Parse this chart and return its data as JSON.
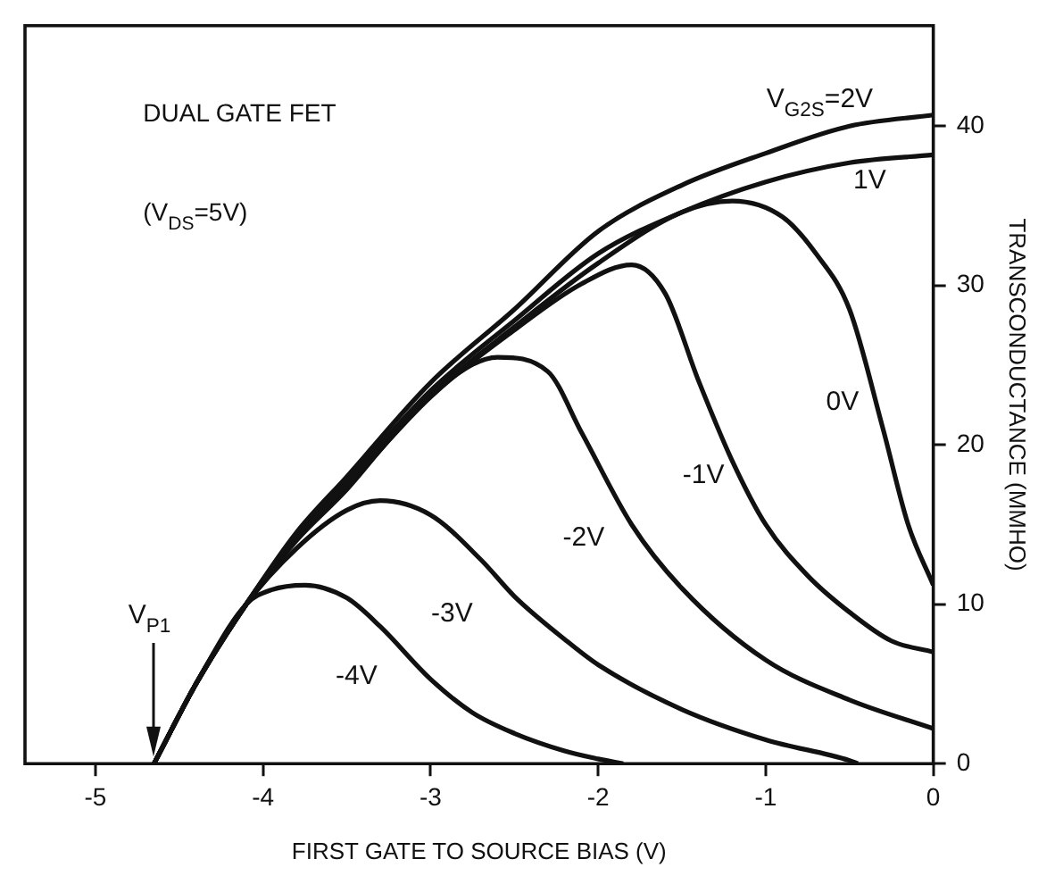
{
  "chart_data": {
    "type": "line",
    "xlabel": "FIRST GATE TO SOURCE BIAS (V)",
    "ylabel": "TRANSCONDUCTANCE (MMHO)",
    "xlim": [
      -5.42,
      0
    ],
    "xticks": [
      -5,
      -4,
      -3,
      -2,
      -1,
      0
    ],
    "ylim": [
      0,
      46.3
    ],
    "yticks": [
      0,
      10,
      20,
      30,
      40
    ],
    "grid": false,
    "legend": false,
    "marker": "none",
    "line_style": "solid",
    "annotations": [
      "DUAL GATE FET",
      "(V$_{DS}$=5V)",
      "V$_{P1}$"
    ],
    "series": [
      {
        "name": "V$_{G2S}$=2V",
        "color": "#111111",
        "x": [
          -4.65,
          -4.4,
          -4.1,
          -3.8,
          -3.5,
          -3,
          -2.5,
          -2,
          -1.5,
          -1,
          -0.5,
          0
        ],
        "values": [
          0,
          5,
          10,
          14.5,
          18,
          23.9,
          28.5,
          33.4,
          36.3,
          38.3,
          40,
          40.7
        ]
      },
      {
        "name": "1V",
        "color": "#111111",
        "x": [
          -4.65,
          -4.4,
          -4.1,
          -3.8,
          -3.5,
          -3,
          -2.5,
          -2,
          -1.5,
          -1,
          -0.5,
          0
        ],
        "values": [
          0,
          5,
          10,
          14.3,
          17.7,
          23.4,
          27.8,
          32,
          34.6,
          36.5,
          37.7,
          38.2
        ]
      },
      {
        "name": "0V",
        "color": "#111111",
        "x": [
          -4.65,
          -4.4,
          -4.1,
          -3.8,
          -3.5,
          -3,
          -2.5,
          -2,
          -1.5,
          -1.2,
          -0.9,
          -0.7,
          -0.5,
          -0.3,
          -0.15,
          0
        ],
        "values": [
          0,
          5,
          10,
          14.2,
          17.5,
          23.1,
          27.4,
          31.4,
          34.6,
          35.3,
          34.3,
          32,
          28.5,
          21,
          15,
          11.2
        ]
      },
      {
        "name": "-1V",
        "color": "#111111",
        "x": [
          -4.65,
          -4.4,
          -4.1,
          -3.8,
          -3.5,
          -3,
          -2.5,
          -2.1,
          -1.8,
          -1.6,
          -1.4,
          -1.2,
          -1,
          -0.75,
          -0.5,
          -0.25,
          0
        ],
        "values": [
          0,
          5,
          10,
          14.2,
          17.4,
          23,
          27.2,
          30.1,
          31.3,
          29.5,
          24,
          19,
          15,
          11.8,
          9.5,
          7.7,
          7
        ]
      },
      {
        "name": "-2V",
        "color": "#111111",
        "x": [
          -4.65,
          -4.4,
          -4.1,
          -3.8,
          -3.5,
          -3.2,
          -2.9,
          -2.6,
          -2.3,
          -2.1,
          -1.8,
          -1.5,
          -1,
          -0.5,
          0
        ],
        "values": [
          0,
          5,
          10,
          14,
          17.2,
          20.9,
          24,
          25.5,
          24.6,
          20.8,
          15,
          11,
          6.5,
          4,
          2.2
        ]
      },
      {
        "name": "-3V",
        "color": "#111111",
        "x": [
          -4.65,
          -4.4,
          -4.1,
          -3.8,
          -3.5,
          -3.3,
          -3,
          -2.7,
          -2.5,
          -2.2,
          -2,
          -1.5,
          -1,
          -0.5,
          -0.45
        ],
        "values": [
          0,
          5,
          10,
          13.5,
          15.9,
          16.5,
          15.6,
          12.8,
          10.5,
          7.8,
          6.2,
          3.4,
          1.5,
          0.2,
          0
        ]
      },
      {
        "name": "-4V",
        "color": "#111111",
        "x": [
          -4.65,
          -4.4,
          -4.1,
          -3.95,
          -3.75,
          -3.5,
          -3.3,
          -3,
          -2.75,
          -2.5,
          -2.2,
          -2,
          -1.85
        ],
        "values": [
          0,
          5,
          10,
          10.9,
          11.2,
          10.4,
          8.6,
          5.3,
          3.2,
          1.9,
          0.8,
          0.3,
          0
        ]
      }
    ]
  }
}
